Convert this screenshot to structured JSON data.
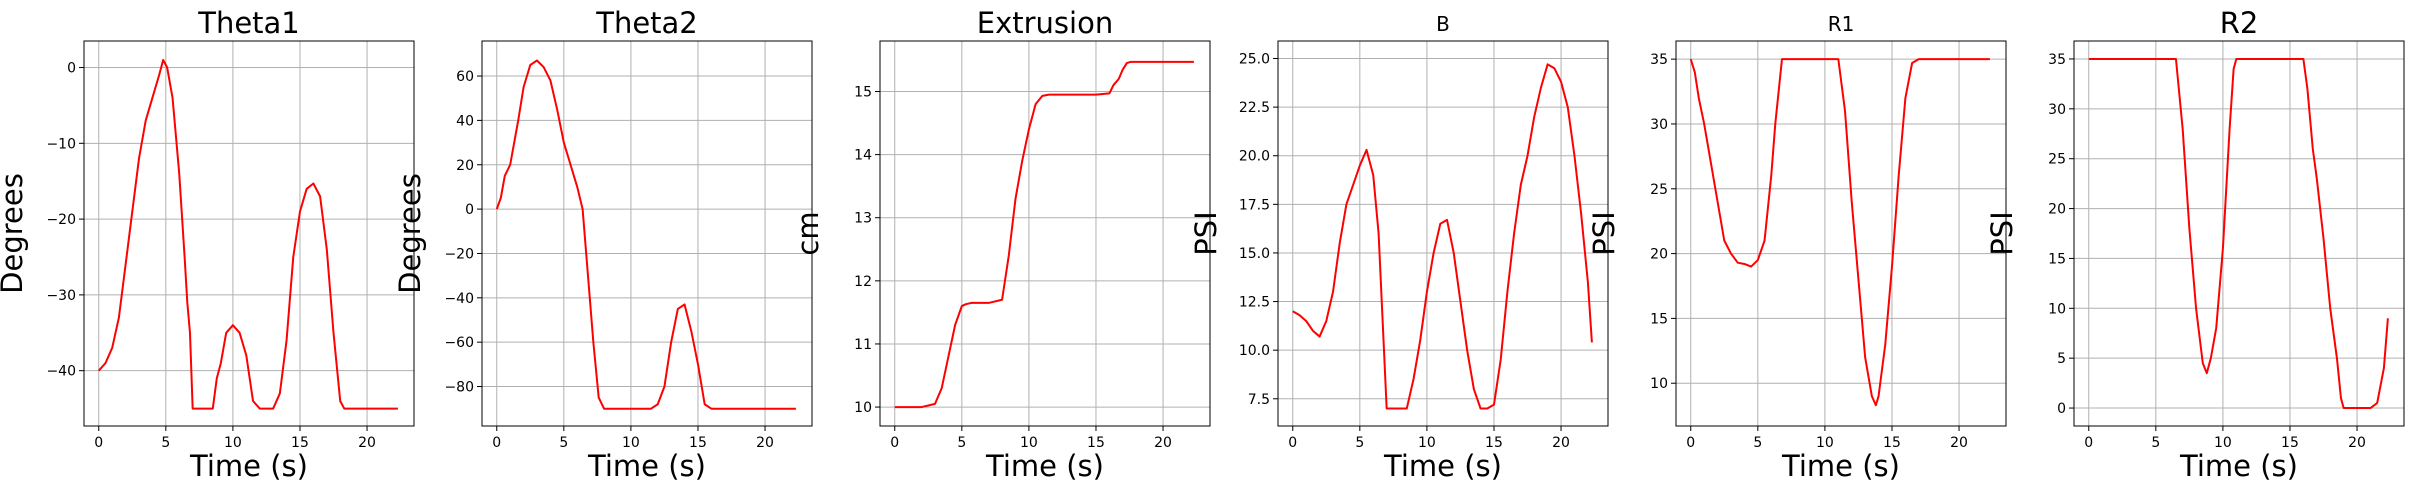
{
  "chart_data": [
    {
      "type": "line",
      "title": "Theta1",
      "title_size": "large",
      "xlabel": "Time (s)",
      "ylabel": "Degrees",
      "xlim": [
        -1.1,
        23.5
      ],
      "ylim": [
        -47.3,
        3.5
      ],
      "xticks": [
        0,
        5,
        10,
        15,
        20
      ],
      "yticks": [
        0,
        -10,
        -20,
        -30,
        -40
      ],
      "grid": true,
      "series": [
        {
          "name": "Theta1",
          "color": "#ff0000",
          "x": [
            0,
            0.5,
            1.0,
            1.5,
            2.0,
            2.5,
            3.0,
            3.5,
            4.0,
            4.5,
            4.8,
            5.1,
            5.5,
            6.0,
            6.4,
            6.6,
            6.8,
            7.0,
            7.5,
            8.5,
            8.8,
            9.1,
            9.5,
            10.0,
            10.5,
            11.0,
            11.5,
            12.0,
            13.0,
            13.5,
            14.0,
            14.5,
            15.0,
            15.5,
            16.0,
            16.5,
            17.0,
            17.5,
            18.0,
            18.3,
            19.0,
            20.0,
            21.0,
            22.3
          ],
          "y": [
            -40,
            -39,
            -37,
            -33,
            -26,
            -19,
            -12,
            -7,
            -4,
            -1,
            1,
            0,
            -4,
            -14,
            -25,
            -31,
            -35,
            -45,
            -45,
            -45,
            -41,
            -39,
            -35,
            -34,
            -35,
            -38,
            -44,
            -45,
            -45,
            -43,
            -36,
            -25,
            -19,
            -16,
            -15.3,
            -17,
            -24,
            -35,
            -44,
            -45,
            -45,
            -45,
            -45,
            -45
          ]
        }
      ]
    },
    {
      "type": "line",
      "title": "Theta2",
      "title_size": "large",
      "xlabel": "Time (s)",
      "ylabel": "Degrees",
      "xlim": [
        -1.1,
        23.5
      ],
      "ylim": [
        -97.8,
        75.8
      ],
      "xticks": [
        0,
        5,
        10,
        15,
        20
      ],
      "yticks": [
        60,
        40,
        20,
        0,
        -20,
        -40,
        -60,
        -80
      ],
      "grid": true,
      "series": [
        {
          "name": "Theta2",
          "color": "#ff0000",
          "x": [
            0,
            0.3,
            0.6,
            1.0,
            1.3,
            1.6,
            2.0,
            2.5,
            3.0,
            3.5,
            4.0,
            4.5,
            5.0,
            5.5,
            6.0,
            6.4,
            6.8,
            7.2,
            7.6,
            8.0,
            8.5,
            9.5,
            10.5,
            11.5,
            12.0,
            12.5,
            13.0,
            13.5,
            14.0,
            14.5,
            15.0,
            15.5,
            16.0,
            18.0,
            20.0,
            22.3
          ],
          "y": [
            0,
            5,
            15,
            20,
            30,
            40,
            55,
            65,
            67,
            64,
            58,
            45,
            30,
            20,
            10,
            0,
            -30,
            -60,
            -85,
            -90,
            -90,
            -90,
            -90,
            -90,
            -88,
            -80,
            -60,
            -45,
            -43,
            -55,
            -70,
            -88,
            -90,
            -90,
            -90,
            -90
          ]
        }
      ]
    },
    {
      "type": "line",
      "title": "Extrusion",
      "title_size": "large",
      "xlabel": "Time (s)",
      "ylabel": "cm",
      "xlim": [
        -1.1,
        23.5
      ],
      "ylim": [
        9.7,
        15.8
      ],
      "xticks": [
        0,
        5,
        10,
        15,
        20
      ],
      "yticks": [
        15,
        14,
        13,
        12,
        11,
        10
      ],
      "grid": true,
      "series": [
        {
          "name": "Extrusion",
          "color": "#ff0000",
          "x": [
            0,
            1,
            2,
            3,
            3.5,
            4.0,
            4.5,
            5.0,
            5.3,
            5.7,
            6.0,
            7.0,
            8.0,
            8.5,
            9.0,
            9.5,
            10.0,
            10.5,
            11.0,
            11.5,
            12.0,
            13.0,
            14.0,
            15.0,
            16.0,
            16.3,
            16.7,
            17.0,
            17.3,
            17.6,
            18.0,
            20.0,
            22.3
          ],
          "y": [
            10,
            10,
            10,
            10.05,
            10.3,
            10.8,
            11.3,
            11.6,
            11.63,
            11.65,
            11.65,
            11.65,
            11.7,
            12.4,
            13.3,
            13.9,
            14.4,
            14.8,
            14.93,
            14.95,
            14.95,
            14.95,
            14.95,
            14.95,
            14.97,
            15.1,
            15.2,
            15.35,
            15.45,
            15.47,
            15.47,
            15.47,
            15.47
          ]
        }
      ]
    },
    {
      "type": "line",
      "title": "B",
      "title_size": "small",
      "xlabel": "Time (s)",
      "ylabel": "PSI",
      "xlim": [
        -1.1,
        23.5
      ],
      "ylim": [
        6.1,
        25.9
      ],
      "xticks": [
        0,
        5,
        10,
        15,
        20
      ],
      "yticks": [
        25.0,
        22.5,
        20.0,
        17.5,
        15.0,
        12.5,
        10.0,
        7.5
      ],
      "ytick_labels": [
        "25.0",
        "22.5",
        "20.0",
        "17.5",
        "15.0",
        "12.5",
        "10.0",
        "7.5"
      ],
      "grid": true,
      "series": [
        {
          "name": "B",
          "color": "#ff0000",
          "x": [
            0,
            0.5,
            1.0,
            1.5,
            2.0,
            2.5,
            3.0,
            3.5,
            4.0,
            4.5,
            5.0,
            5.5,
            6.0,
            6.4,
            6.8,
            7.0,
            7.5,
            8.5,
            9.0,
            9.5,
            10.0,
            10.5,
            11.0,
            11.5,
            12.0,
            12.5,
            13.0,
            13.5,
            14.0,
            14.5,
            15.0,
            15.5,
            16.0,
            16.5,
            17.0,
            17.5,
            18.0,
            18.5,
            19.0,
            19.5,
            20.0,
            20.5,
            21.0,
            21.5,
            22.0,
            22.3
          ],
          "y": [
            12,
            11.8,
            11.5,
            11,
            10.7,
            11.5,
            13,
            15.5,
            17.5,
            18.5,
            19.5,
            20.3,
            19,
            16,
            10,
            7,
            7,
            7,
            8.5,
            10.5,
            13,
            15,
            16.5,
            16.7,
            15,
            12.5,
            10,
            8,
            7,
            7,
            7.2,
            9.5,
            13,
            16,
            18.5,
            20,
            22,
            23.5,
            24.7,
            24.5,
            23.8,
            22.5,
            20,
            17,
            13.5,
            10.4
          ]
        }
      ]
    },
    {
      "type": "line",
      "title": "R1",
      "title_size": "small",
      "xlabel": "Time (s)",
      "ylabel": "PSI",
      "xlim": [
        -1.1,
        23.5
      ],
      "ylim": [
        6.7,
        36.4
      ],
      "xticks": [
        0,
        5,
        10,
        15,
        20
      ],
      "yticks": [
        35,
        30,
        25,
        20,
        15,
        10
      ],
      "grid": true,
      "series": [
        {
          "name": "R1",
          "color": "#ff0000",
          "x": [
            0,
            0.3,
            0.6,
            1.0,
            1.5,
            2.0,
            2.5,
            3.0,
            3.5,
            4.0,
            4.5,
            5.0,
            5.5,
            6.0,
            6.3,
            6.5,
            6.8,
            7.0,
            8.0,
            9.0,
            10.0,
            11.0,
            11.5,
            12.0,
            12.5,
            13.0,
            13.5,
            13.8,
            14.0,
            14.5,
            15.0,
            15.5,
            16.0,
            16.5,
            17.0,
            18.0,
            20.0,
            22.3
          ],
          "y": [
            35,
            34,
            32,
            30,
            27,
            24,
            21,
            20,
            19.3,
            19.2,
            19,
            19.5,
            21,
            26,
            30,
            32,
            35,
            35,
            35,
            35,
            35,
            35,
            31,
            24,
            18,
            12,
            9,
            8.3,
            9,
            13,
            19,
            26,
            32,
            34.7,
            35,
            35,
            35,
            35
          ]
        }
      ]
    },
    {
      "type": "line",
      "title": "R2",
      "title_size": "large",
      "xlabel": "Time (s)",
      "ylabel": "PSI",
      "xlim": [
        -1.1,
        23.5
      ],
      "ylim": [
        -1.8,
        36.8
      ],
      "xticks": [
        0,
        5,
        10,
        15,
        20
      ],
      "yticks": [
        35,
        30,
        25,
        20,
        15,
        10,
        5,
        0
      ],
      "grid": true,
      "series": [
        {
          "name": "R2",
          "color": "#ff0000",
          "x": [
            0,
            2,
            4,
            6,
            6.5,
            7.0,
            7.5,
            8.0,
            8.5,
            8.8,
            9.1,
            9.5,
            10.0,
            10.5,
            10.8,
            11.0,
            12.0,
            13.0,
            14.0,
            15.0,
            16.0,
            16.3,
            16.7,
            17.0,
            17.5,
            18.0,
            18.5,
            18.8,
            19.0,
            20.0,
            21.0,
            21.5,
            22.0,
            22.3
          ],
          "y": [
            35,
            35,
            35,
            35,
            35,
            28,
            18,
            10,
            4.5,
            3.5,
            5,
            8,
            16,
            28,
            34,
            35,
            35,
            35,
            35,
            35,
            35,
            32,
            26,
            23,
            17,
            10,
            5,
            1,
            0,
            0,
            0,
            0.5,
            4,
            9
          ]
        }
      ]
    }
  ]
}
